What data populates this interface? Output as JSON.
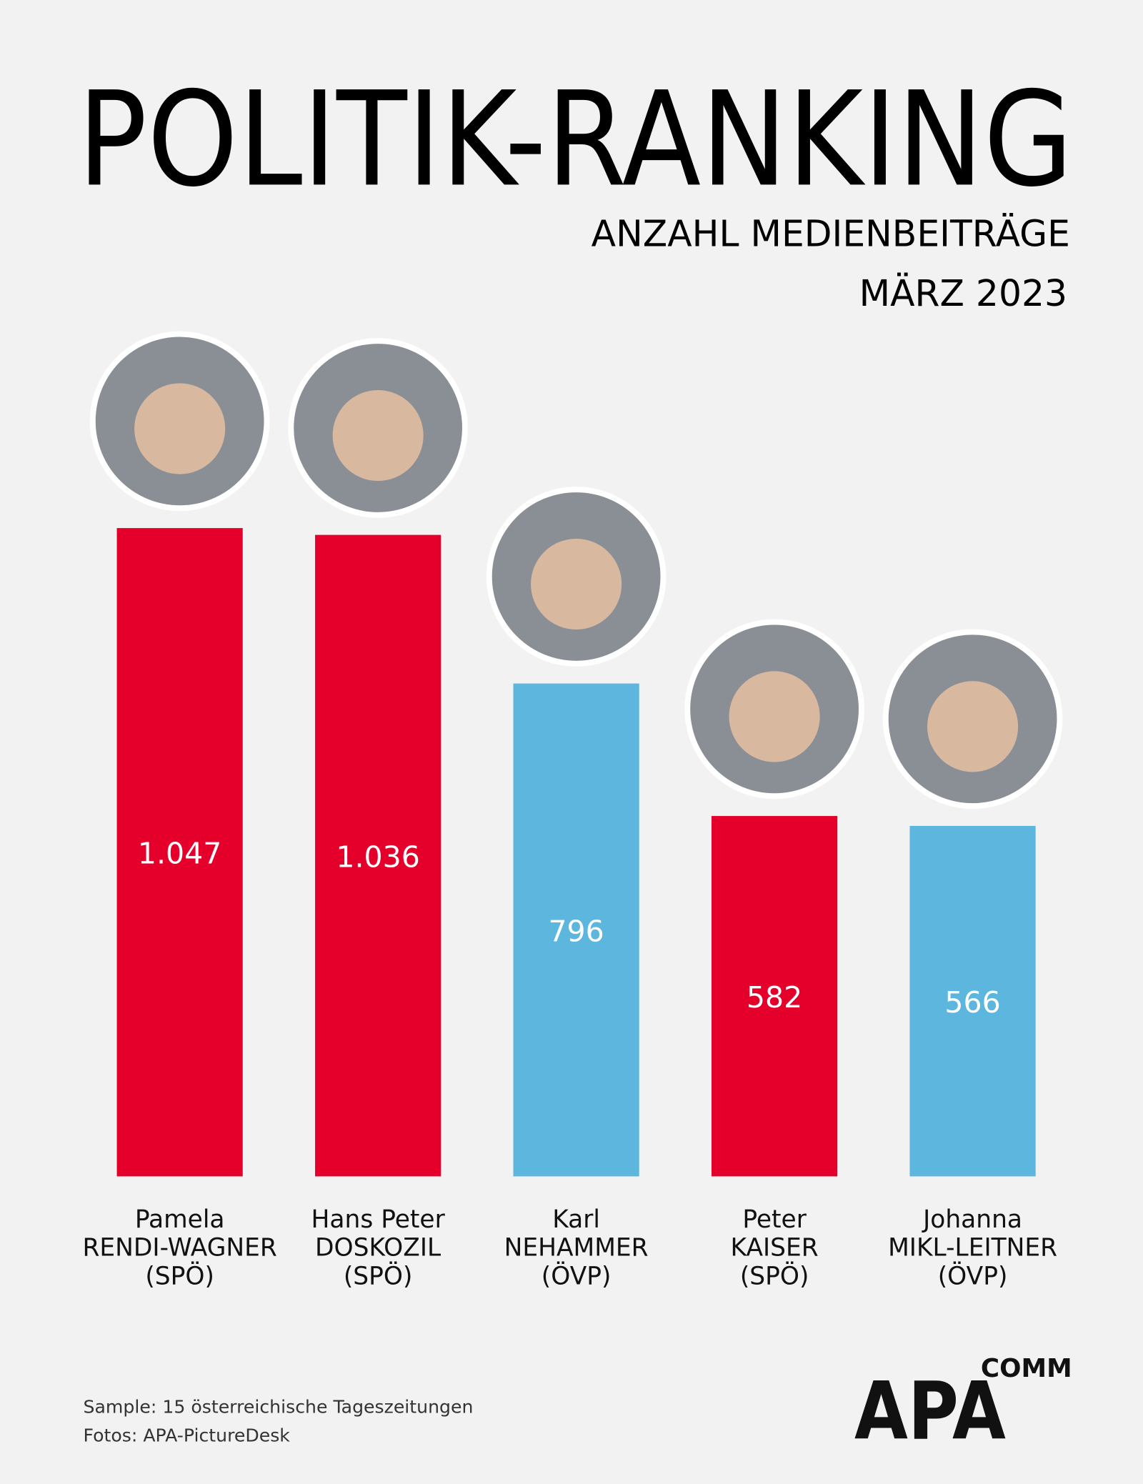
{
  "chart_data": {
    "type": "bar",
    "title": "POLITIK-RANKING",
    "subtitle": "ANZAHL MEDIENBEITRÄGE",
    "period": "MÄRZ 2023",
    "categories": [
      [
        "Pamela",
        "RENDI-WAGNER",
        "(SPÖ)"
      ],
      [
        "Hans Peter",
        "DOSKOZIL",
        "(SPÖ)"
      ],
      [
        "Karl",
        "NEHAMMER",
        "(ÖVP)"
      ],
      [
        "Peter",
        "KAISER",
        "(SPÖ)"
      ],
      [
        "Johanna",
        "MIKL-LEITNER",
        "(ÖVP)"
      ]
    ],
    "values": [
      1047,
      1036,
      796,
      582,
      566
    ],
    "value_labels": [
      "1.047",
      "1.036",
      "796",
      "582",
      "566"
    ],
    "colors": [
      "#e4002b",
      "#e4002b",
      "#5cb6de",
      "#e4002b",
      "#5cb6de"
    ],
    "notes": [
      "Sample: 15 österreichische Tageszeitungen",
      "Fotos: APA-PictureDesk"
    ],
    "logo": {
      "main": "APA",
      "suffix": "COMM"
    }
  }
}
